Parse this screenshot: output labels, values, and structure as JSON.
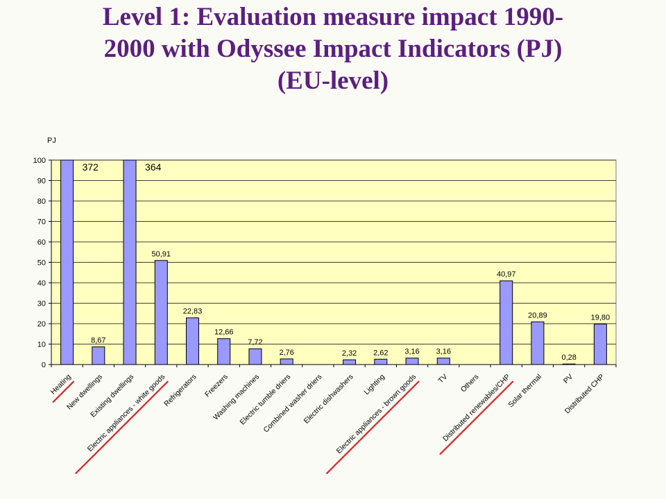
{
  "title_lines": [
    "Level 1: Evaluation measure impact 1990-",
    "2000 with Odyssee Impact Indicators (PJ)",
    "(EU-level)"
  ],
  "chart_data": {
    "type": "bar",
    "ylabel": "PJ",
    "ylim": [
      0,
      100
    ],
    "yticks": [
      0,
      10,
      20,
      30,
      40,
      50,
      60,
      70,
      80,
      90,
      100
    ],
    "grid": true,
    "legend": "none",
    "categories": [
      "Heating",
      "New dwellings",
      "Existing dwellings",
      "Electric appliances - white goods",
      "Refrigerators",
      "Freezers",
      "Washing machines",
      "Electric tumble driers",
      "Combined washer driers",
      "Electric dishwashers",
      "Lighting",
      "Electric appliances - brown goods",
      "TV",
      "Others",
      "Distributed renewables/CHP",
      "Solar thermal",
      "PV",
      "Distributed CHP"
    ],
    "values": [
      372,
      8.67,
      364,
      50.91,
      22.83,
      12.66,
      7.72,
      2.76,
      null,
      2.32,
      2.62,
      3.16,
      3.16,
      null,
      40.97,
      20.89,
      0.28,
      19.8
    ],
    "data_labels": [
      "372",
      "8,67",
      "364",
      "50,91",
      "22,83",
      "12,66",
      "7,72",
      "2,76",
      "",
      "2,32",
      "2,62",
      "3,16",
      "3,16",
      "",
      "40,97",
      "20,89",
      "0,28",
      "19,80"
    ],
    "underlined_categories": [
      "Heating",
      "Electric appliances - white goods",
      "Electric appliances - brown goods",
      "Distributed renewables/CHP"
    ],
    "colors": {
      "bar": "#9999ff",
      "bar_edge": "#000000",
      "plot_bg": "#ffffc0",
      "grid": "#000000",
      "underline": "#e02020"
    }
  }
}
